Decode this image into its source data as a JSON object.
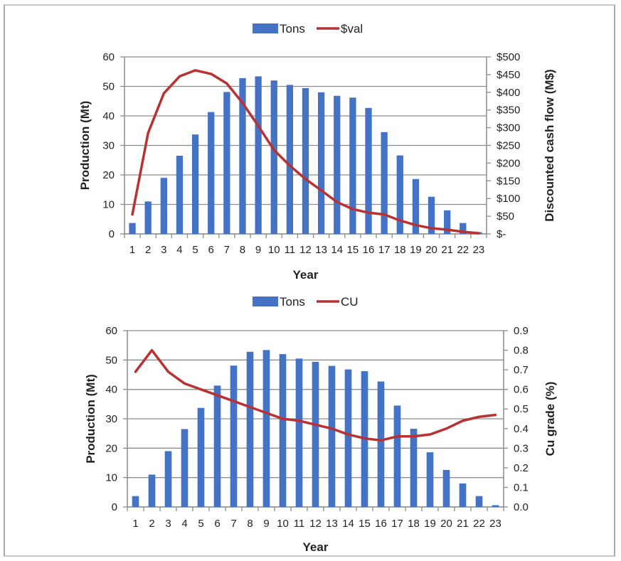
{
  "chart_data": [
    {
      "type": "bar+line",
      "title": "",
      "legend": {
        "position": "top",
        "entries": [
          "Tons",
          "$val"
        ]
      },
      "xlabel": "Year",
      "ylabel": "Production (Mt)",
      "y2label": "Discounted cash flow (M$)",
      "categories": [
        "1",
        "2",
        "3",
        "4",
        "5",
        "6",
        "7",
        "8",
        "9",
        "10",
        "11",
        "12",
        "13",
        "14",
        "15",
        "16",
        "17",
        "18",
        "19",
        "20",
        "21",
        "22",
        "23"
      ],
      "ylim": [
        0,
        60
      ],
      "yticks": [
        "0",
        "10",
        "20",
        "30",
        "40",
        "50",
        "60"
      ],
      "y2lim": [
        0,
        500
      ],
      "y2ticks": [
        "$-",
        "$50",
        "$100",
        "$150",
        "$200",
        "$250",
        "$300",
        "$350",
        "$400",
        "$450",
        "$500"
      ],
      "grid": true,
      "series": [
        {
          "name": "Tons",
          "type": "bar",
          "axis": "left",
          "color": "#4472c4",
          "values": [
            3.7,
            11,
            19,
            26.5,
            33.7,
            41.3,
            48.1,
            52.8,
            53.4,
            52,
            50.5,
            49.4,
            48,
            46.8,
            46.2,
            42.7,
            34.5,
            26.6,
            18.6,
            12.6,
            8,
            3.7,
            0.6
          ]
        },
        {
          "name": "$val",
          "type": "line",
          "axis": "right",
          "color": "#b83234",
          "values": [
            55,
            285,
            397,
            445,
            462,
            452,
            425,
            370,
            305,
            237,
            193,
            155,
            123,
            90,
            70,
            60,
            55,
            38,
            25,
            16,
            12,
            6,
            2
          ]
        }
      ]
    },
    {
      "type": "bar+line",
      "title": "",
      "legend": {
        "position": "top",
        "entries": [
          "Tons",
          "CU"
        ]
      },
      "xlabel": "Year",
      "ylabel": "Production (Mt)",
      "y2label": "Cu grade (%)",
      "categories": [
        "1",
        "2",
        "3",
        "4",
        "5",
        "6",
        "7",
        "8",
        "9",
        "10",
        "11",
        "12",
        "13",
        "14",
        "15",
        "16",
        "17",
        "18",
        "19",
        "20",
        "21",
        "22",
        "23"
      ],
      "ylim": [
        0,
        60
      ],
      "yticks": [
        "0",
        "10",
        "20",
        "30",
        "40",
        "50",
        "60"
      ],
      "y2lim": [
        0,
        0.9
      ],
      "y2ticks": [
        "0.0",
        "0.1",
        "0.2",
        "0.3",
        "0.4",
        "0.5",
        "0.6",
        "0.7",
        "0.8",
        "0.9"
      ],
      "grid": true,
      "series": [
        {
          "name": "Tons",
          "type": "bar",
          "axis": "left",
          "color": "#4472c4",
          "values": [
            3.7,
            11,
            19,
            26.5,
            33.7,
            41.3,
            48.1,
            52.8,
            53.4,
            52,
            50.5,
            49.4,
            48,
            46.8,
            46.2,
            42.7,
            34.5,
            26.6,
            18.6,
            12.6,
            8,
            3.7,
            0.6
          ]
        },
        {
          "name": "CU",
          "type": "line",
          "axis": "right",
          "color": "#b83234",
          "values": [
            0.69,
            0.8,
            0.69,
            0.63,
            0.6,
            0.57,
            0.54,
            0.51,
            0.48,
            0.45,
            0.44,
            0.42,
            0.4,
            0.37,
            0.35,
            0.34,
            0.36,
            0.36,
            0.37,
            0.4,
            0.44,
            0.46,
            0.47
          ]
        }
      ]
    }
  ]
}
